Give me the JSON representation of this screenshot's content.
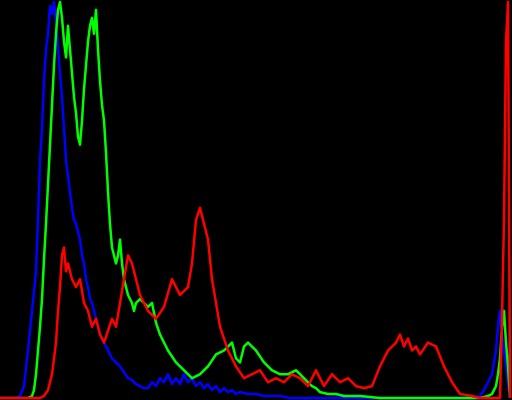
{
  "chart_data": {
    "type": "line",
    "title": "",
    "xlabel": "",
    "ylabel": "",
    "xlim": [
      0,
      255
    ],
    "ylim": [
      0,
      100
    ],
    "grid": false,
    "legend": "none",
    "series": [
      {
        "color": "#0000ff",
        "x": [
          0,
          4,
          8,
          10,
          12,
          14,
          16,
          18,
          19,
          20,
          21,
          22,
          23,
          24,
          25,
          26,
          27,
          28,
          29,
          30,
          31,
          32,
          33,
          34,
          35,
          36,
          37,
          38,
          39,
          40,
          41,
          42,
          43,
          44,
          45,
          46,
          48,
          50,
          52,
          54,
          56,
          58,
          60,
          62,
          64,
          66,
          68,
          70,
          72,
          74,
          76,
          78,
          80,
          82,
          84,
          86,
          88,
          90,
          92,
          94,
          96,
          98,
          100,
          102,
          104,
          106,
          108,
          110,
          112,
          114,
          116,
          118,
          120,
          124,
          128,
          132,
          136,
          140,
          145,
          150,
          155,
          160,
          170,
          180,
          190,
          200,
          210,
          220,
          230,
          236,
          240,
          242,
          244,
          246,
          248,
          249,
          250,
          251,
          252,
          253,
          254,
          255
        ],
        "y": [
          0,
          0,
          0,
          0.5,
          3,
          12,
          22,
          32,
          45,
          60,
          68,
          80,
          88,
          92,
          99,
          97,
          100,
          95,
          88,
          82,
          76,
          68,
          60,
          56,
          52,
          48,
          45,
          44,
          42,
          40,
          36,
          34,
          30,
          28,
          25,
          24,
          20,
          16,
          14,
          12,
          10,
          9,
          8,
          6.5,
          5,
          4.5,
          3.5,
          3,
          2.5,
          2.5,
          4,
          3,
          5,
          4,
          6,
          3.5,
          5,
          3.5,
          6,
          4,
          5,
          3,
          4,
          2.5,
          3.5,
          2,
          3,
          1.5,
          2.5,
          1.5,
          2,
          1,
          1.5,
          1,
          1,
          0.5,
          0.5,
          0.5,
          0,
          0,
          0,
          0,
          0,
          0,
          0,
          0,
          0,
          0,
          0,
          0,
          0.5,
          2,
          4,
          6,
          12,
          18,
          22,
          16,
          12,
          8,
          4,
          0
        ]
      },
      {
        "color": "#00ff00",
        "x": [
          0,
          4,
          8,
          12,
          14,
          16,
          17,
          18,
          19,
          20,
          21,
          22,
          23,
          24,
          25,
          26,
          27,
          28,
          29,
          30,
          31,
          32,
          33,
          34,
          35,
          36,
          37,
          38,
          39,
          40,
          41,
          42,
          43,
          44,
          45,
          46,
          47,
          48,
          49,
          50,
          51,
          52,
          53,
          54,
          55,
          56,
          57,
          58,
          59,
          60,
          61,
          62,
          63,
          64,
          65,
          66,
          67,
          68,
          70,
          72,
          74,
          76,
          78,
          80,
          84,
          88,
          92,
          96,
          100,
          104,
          108,
          112,
          116,
          118,
          120,
          122,
          124,
          128,
          132,
          136,
          140,
          144,
          148,
          150,
          152,
          154,
          156,
          158,
          160,
          164,
          168,
          172,
          176,
          180,
          190,
          200,
          210,
          220,
          230,
          240,
          244,
          246,
          248,
          249,
          250,
          251,
          252,
          253,
          254,
          255
        ],
        "y": [
          0,
          0,
          0,
          0,
          0,
          0.5,
          2,
          6,
          12,
          18,
          25,
          35,
          44,
          54,
          64,
          74,
          84,
          92,
          98,
          100,
          96,
          90,
          86,
          94,
          88,
          82,
          76,
          72,
          66,
          64,
          70,
          78,
          84,
          90,
          94,
          96,
          92,
          98,
          88,
          80,
          74,
          70,
          62,
          52,
          44,
          38,
          36,
          34,
          36,
          40,
          34,
          30,
          28,
          26,
          25,
          24,
          22,
          24,
          25,
          24,
          23,
          24,
          19,
          16,
          12,
          9,
          7,
          5,
          6,
          8,
          11,
          12,
          14,
          10,
          9,
          13,
          14,
          12,
          9,
          7,
          6,
          6,
          7,
          6,
          5,
          4,
          3,
          2.5,
          1.5,
          1,
          1,
          0.5,
          0.5,
          0.5,
          0,
          0,
          0,
          0,
          0,
          0,
          0.5,
          1,
          3,
          6,
          10,
          18,
          22,
          14,
          8,
          0
        ]
      },
      {
        "color": "#ff0000",
        "x": [
          0,
          8,
          12,
          16,
          20,
          22,
          24,
          26,
          28,
          29,
          30,
          31,
          32,
          33,
          34,
          36,
          38,
          40,
          42,
          44,
          46,
          48,
          50,
          52,
          54,
          56,
          58,
          60,
          62,
          64,
          66,
          70,
          74,
          78,
          82,
          86,
          90,
          94,
          96,
          98,
          100,
          102,
          104,
          106,
          110,
          114,
          118,
          122,
          126,
          130,
          134,
          138,
          142,
          146,
          150,
          154,
          158,
          162,
          166,
          170,
          174,
          178,
          182,
          186,
          190,
          194,
          198,
          200,
          202,
          204,
          206,
          208,
          210,
          214,
          218,
          222,
          226,
          230,
          236,
          240,
          244,
          248,
          250,
          251,
          252,
          253,
          254,
          255
        ],
        "y": [
          0,
          0,
          0,
          0,
          0,
          0.5,
          2,
          6,
          14,
          22,
          28,
          36,
          38,
          32,
          34,
          30,
          28,
          30,
          24,
          22,
          18,
          20,
          16,
          14,
          17,
          20,
          18,
          24,
          30,
          36,
          34,
          26,
          22,
          20,
          23,
          30,
          26,
          28,
          34,
          45,
          48,
          44,
          40,
          30,
          18,
          12,
          8,
          5,
          6,
          7,
          4,
          5,
          4,
          6,
          5,
          3,
          7,
          3,
          6,
          4,
          5,
          3,
          2.5,
          3,
          8,
          12,
          14,
          16,
          13,
          15,
          12,
          13,
          11,
          14,
          13,
          8,
          4,
          1,
          0.5,
          0,
          0,
          0,
          0,
          20,
          45,
          90,
          100,
          0
        ]
      }
    ]
  }
}
